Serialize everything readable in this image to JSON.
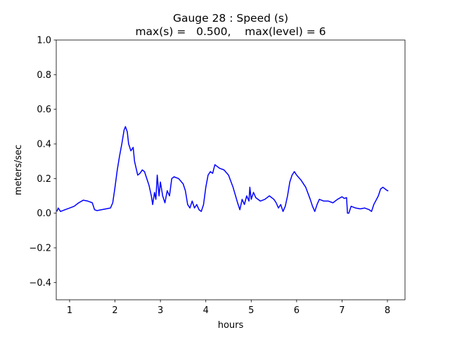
{
  "chart_data": {
    "type": "line",
    "title": "Gauge 28 : Speed (s)",
    "subtitle": "max(s) =   0.500,    max(level) = 6",
    "x_label": "hours",
    "y_label": "meters/sec",
    "xlim": [
      0.706,
      8.387
    ],
    "ylim": [
      -0.5,
      1.0
    ],
    "xticks": [
      1,
      2,
      3,
      4,
      5,
      6,
      7,
      8
    ],
    "yticks": [
      {
        "value": -0.4,
        "label": "−0.4"
      },
      {
        "value": -0.2,
        "label": "−0.2"
      },
      {
        "value": 0.0,
        "label": "0.0"
      },
      {
        "value": 0.2,
        "label": "0.2"
      },
      {
        "value": 0.4,
        "label": "0.4"
      },
      {
        "value": 0.6,
        "label": "0.6"
      },
      {
        "value": 0.8,
        "label": "0.8"
      },
      {
        "value": 1.0,
        "label": "1.0"
      }
    ],
    "grid": false,
    "series": [
      {
        "color": "#0000ff",
        "x": [
          0.72,
          0.75,
          0.8,
          0.9,
          1.0,
          1.1,
          1.2,
          1.3,
          1.4,
          1.5,
          1.55,
          1.6,
          1.7,
          1.8,
          1.9,
          1.95,
          2.0,
          2.05,
          2.1,
          2.15,
          2.2,
          2.23,
          2.27,
          2.3,
          2.35,
          2.4,
          2.43,
          2.5,
          2.55,
          2.6,
          2.65,
          2.7,
          2.75,
          2.8,
          2.83,
          2.87,
          2.9,
          2.93,
          2.97,
          3.0,
          3.05,
          3.1,
          3.15,
          3.2,
          3.25,
          3.3,
          3.4,
          3.5,
          3.55,
          3.6,
          3.65,
          3.7,
          3.75,
          3.8,
          3.85,
          3.9,
          3.95,
          4.0,
          4.05,
          4.1,
          4.15,
          4.2,
          4.25,
          4.3,
          4.4,
          4.5,
          4.6,
          4.7,
          4.75,
          4.8,
          4.85,
          4.9,
          4.95,
          4.97,
          5.0,
          5.05,
          5.1,
          5.2,
          5.3,
          5.4,
          5.5,
          5.55,
          5.6,
          5.65,
          5.7,
          5.75,
          5.8,
          5.85,
          5.9,
          5.95,
          6.0,
          6.1,
          6.2,
          6.3,
          6.35,
          6.4,
          6.45,
          6.5,
          6.6,
          6.7,
          6.8,
          6.9,
          7.0,
          7.05,
          7.1,
          7.12,
          7.15,
          7.2,
          7.3,
          7.4,
          7.5,
          7.6,
          7.65,
          7.7,
          7.8,
          7.85,
          7.9,
          8.0,
          8.02
        ],
        "values": [
          0.01,
          0.03,
          0.01,
          0.02,
          0.03,
          0.04,
          0.06,
          0.075,
          0.07,
          0.06,
          0.02,
          0.015,
          0.02,
          0.025,
          0.03,
          0.06,
          0.15,
          0.25,
          0.33,
          0.4,
          0.48,
          0.5,
          0.47,
          0.4,
          0.36,
          0.38,
          0.3,
          0.22,
          0.23,
          0.25,
          0.24,
          0.2,
          0.16,
          0.1,
          0.05,
          0.12,
          0.08,
          0.22,
          0.1,
          0.18,
          0.1,
          0.06,
          0.13,
          0.1,
          0.2,
          0.21,
          0.2,
          0.17,
          0.13,
          0.05,
          0.03,
          0.07,
          0.03,
          0.05,
          0.02,
          0.01,
          0.05,
          0.15,
          0.22,
          0.24,
          0.23,
          0.28,
          0.27,
          0.26,
          0.25,
          0.22,
          0.15,
          0.06,
          0.02,
          0.08,
          0.05,
          0.1,
          0.07,
          0.15,
          0.08,
          0.12,
          0.09,
          0.07,
          0.08,
          0.1,
          0.08,
          0.06,
          0.03,
          0.05,
          0.01,
          0.04,
          0.1,
          0.18,
          0.22,
          0.24,
          0.22,
          0.19,
          0.15,
          0.08,
          0.04,
          0.01,
          0.05,
          0.08,
          0.07,
          0.07,
          0.06,
          0.08,
          0.095,
          0.085,
          0.09,
          0.0,
          0.0,
          0.04,
          0.03,
          0.025,
          0.03,
          0.02,
          0.01,
          0.05,
          0.1,
          0.14,
          0.15,
          0.13,
          0.13
        ]
      }
    ]
  }
}
